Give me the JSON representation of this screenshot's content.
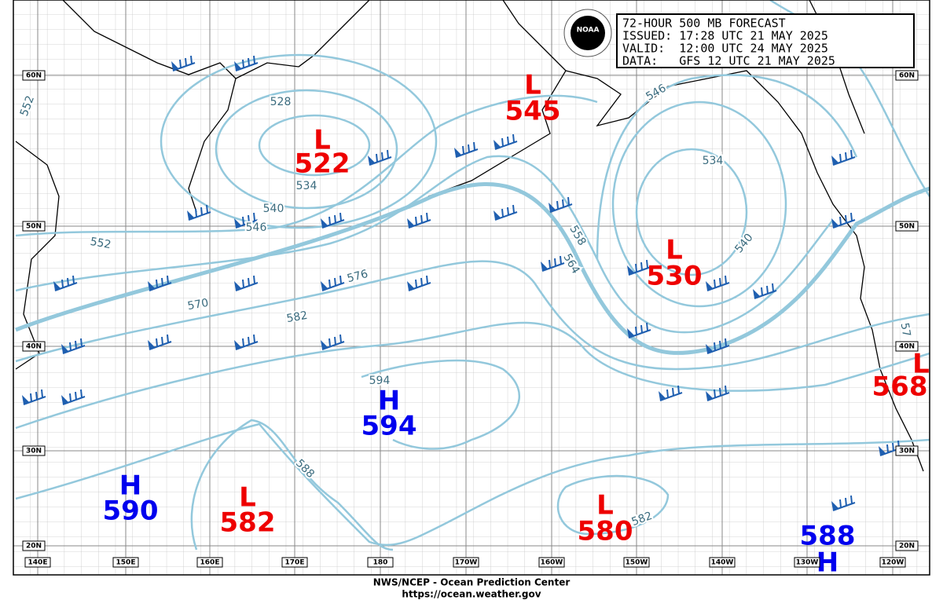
{
  "header": {
    "lines": [
      "72-HOUR 500 MB FORECAST",
      "ISSUED: 17:28 UTC 21 MAY 2025",
      "VALID:  12:00 UTC 24 MAY 2025",
      "DATA:   GFS 12 UTC 21 MAY 2025"
    ],
    "logo": "NOAA"
  },
  "centers": [
    {
      "letter": "L",
      "value": 522
    },
    {
      "letter": "L",
      "value": 545
    },
    {
      "letter": "L",
      "value": 530
    },
    {
      "letter": "L",
      "value": 568
    },
    {
      "letter": "H",
      "value": 594
    },
    {
      "letter": "H",
      "value": 590
    },
    {
      "letter": "L",
      "value": 582
    },
    {
      "letter": "L",
      "value": 580
    },
    {
      "letter": "H",
      "value": 588
    }
  ],
  "contour_labels": [
    552,
    528,
    534,
    540,
    546,
    552,
    570,
    576,
    582,
    588,
    594,
    546,
    534,
    540,
    558,
    564,
    582,
    57
  ],
  "latitudes": [
    "60N",
    "50N",
    "40N",
    "30N",
    "20N"
  ],
  "longitudes": [
    "140E",
    "150E",
    "160E",
    "170E",
    "180",
    "170W",
    "160W",
    "150W",
    "140W",
    "130W",
    "120W"
  ],
  "footer": [
    "NWS/NCEP - Ocean Prediction Center",
    "https://ocean.weather.gov"
  ]
}
